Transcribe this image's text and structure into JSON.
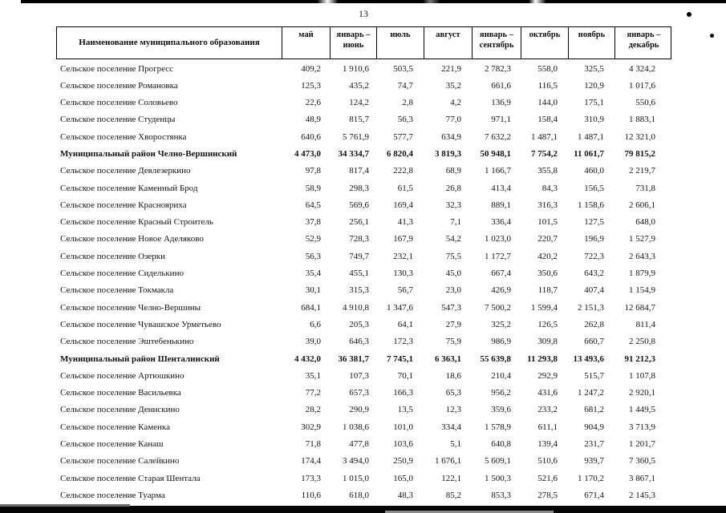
{
  "page": {
    "number": "13"
  },
  "table": {
    "header": {
      "name_column": "Наименование муниципального образования",
      "columns": [
        "май",
        "январь – июнь",
        "июль",
        "август",
        "январь – сентябрь",
        "октябрь",
        "ноябрь",
        "январь – декабрь"
      ]
    },
    "rows": [
      {
        "name": "Сельское поселение Прогресс",
        "type": "settlement",
        "values": [
          "409,2",
          "1 910,6",
          "503,5",
          "221,9",
          "2 782,3",
          "558,0",
          "325,5",
          "4 324,2"
        ]
      },
      {
        "name": "Сельское поселение Романовка",
        "type": "settlement",
        "values": [
          "125,3",
          "435,2",
          "74,7",
          "35,2",
          "661,6",
          "116,5",
          "120,9",
          "1 017,6"
        ]
      },
      {
        "name": "Сельское поселение Соловьево",
        "type": "settlement",
        "values": [
          "22,6",
          "124,2",
          "2,8",
          "4,2",
          "136,9",
          "144,0",
          "175,1",
          "550,6"
        ]
      },
      {
        "name": "Сельское поселение Студенцы",
        "type": "settlement",
        "values": [
          "48,9",
          "815,7",
          "56,3",
          "77,0",
          "971,1",
          "158,4",
          "310,9",
          "1 883,1"
        ]
      },
      {
        "name": "Сельское поселение Хворостянка",
        "type": "settlement",
        "values": [
          "640,6",
          "5 761,9",
          "577,7",
          "634,9",
          "7 632,2",
          "1 487,1",
          "1 487,1",
          "12 321,0"
        ]
      },
      {
        "name": "Муниципальный район Челно-Вершинский",
        "type": "district",
        "values": [
          "4 473,0",
          "34 334,7",
          "6 820,4",
          "3 819,3",
          "50 948,1",
          "7 754,2",
          "11 061,7",
          "79 815,2"
        ]
      },
      {
        "name": "Сельское поселение Девлезеркино",
        "type": "settlement",
        "values": [
          "97,8",
          "817,4",
          "222,8",
          "68,9",
          "1 166,7",
          "355,8",
          "460,0",
          "2 219,7"
        ]
      },
      {
        "name": "Сельское поселение Каменный Брод",
        "type": "settlement",
        "values": [
          "58,9",
          "298,3",
          "61,5",
          "26,8",
          "413,4",
          "84,3",
          "156,5",
          "731,8"
        ]
      },
      {
        "name": "Сельское поселение Краснояриха",
        "type": "settlement",
        "values": [
          "64,5",
          "569,6",
          "169,4",
          "32,3",
          "889,1",
          "316,3",
          "1 158,6",
          "2 606,1"
        ]
      },
      {
        "name": "Сельское поселение Красный Строитель",
        "type": "settlement",
        "values": [
          "37,8",
          "256,1",
          "41,3",
          "7,1",
          "336,4",
          "101,5",
          "127,5",
          "648,0"
        ]
      },
      {
        "name": "Сельское поселение Новое Аделяково",
        "type": "settlement",
        "values": [
          "52,9",
          "728,3",
          "167,9",
          "54,2",
          "1 023,0",
          "220,7",
          "196,9",
          "1 527,9"
        ]
      },
      {
        "name": "Сельское поселение Озерки",
        "type": "settlement",
        "values": [
          "56,3",
          "749,7",
          "232,1",
          "75,5",
          "1 172,7",
          "420,2",
          "722,3",
          "2 643,3"
        ]
      },
      {
        "name": "Сельское поселение Сиделькино",
        "type": "settlement",
        "values": [
          "35,4",
          "455,1",
          "130,3",
          "45,0",
          "667,4",
          "350,6",
          "643,2",
          "1 879,9"
        ]
      },
      {
        "name": "Сельское поселение Токмакла",
        "type": "settlement",
        "values": [
          "30,1",
          "315,3",
          "56,7",
          "23,0",
          "426,9",
          "118,7",
          "407,4",
          "1 154,9"
        ]
      },
      {
        "name": "Сельское поселение Челно-Вершины",
        "type": "settlement",
        "values": [
          "684,1",
          "4 910,8",
          "1 347,6",
          "547,3",
          "7 500,2",
          "1 599,4",
          "2 151,3",
          "12 684,7"
        ]
      },
      {
        "name": "Сельское поселение Чувашское Урметьево",
        "type": "settlement",
        "values": [
          "6,6",
          "205,3",
          "64,1",
          "27,9",
          "325,2",
          "126,5",
          "262,8",
          "811,4"
        ]
      },
      {
        "name": "Сельское поселение Эштебенькино",
        "type": "settlement",
        "values": [
          "39,0",
          "646,3",
          "172,3",
          "75,9",
          "986,9",
          "309,8",
          "660,7",
          "2 250,8"
        ]
      },
      {
        "name": "Муниципальный район Шенталинский",
        "type": "district",
        "values": [
          "4 432,0",
          "36 381,7",
          "7 745,1",
          "6 363,1",
          "55 639,8",
          "11 293,8",
          "13 493,6",
          "91 212,3"
        ]
      },
      {
        "name": "Сельское поселение Артюшкино",
        "type": "settlement",
        "values": [
          "35,1",
          "107,3",
          "70,1",
          "18,6",
          "210,4",
          "292,9",
          "515,7",
          "1 107,8"
        ]
      },
      {
        "name": "Сельское поселение Васильевка",
        "type": "settlement",
        "values": [
          "77,2",
          "657,3",
          "166,3",
          "65,3",
          "956,2",
          "431,6",
          "1 247,2",
          "2 920,1"
        ]
      },
      {
        "name": "Сельское поселение Денискино",
        "type": "settlement",
        "values": [
          "28,2",
          "290,9",
          "13,5",
          "12,3",
          "359,6",
          "233,2",
          "681,2",
          "1 449,5"
        ]
      },
      {
        "name": "Сельское поселение Каменка",
        "type": "settlement",
        "values": [
          "302,9",
          "1 038,6",
          "101,0",
          "334,4",
          "1 578,9",
          "611,1",
          "904,9",
          "3 713,9"
        ]
      },
      {
        "name": "Сельское поселение Канаш",
        "type": "settlement",
        "values": [
          "71,8",
          "477,8",
          "103,6",
          "5,1",
          "640,8",
          "139,4",
          "231,7",
          "1 201,7"
        ]
      },
      {
        "name": "Сельское поселение Салейкино",
        "type": "settlement",
        "values": [
          "174,4",
          "3 494,0",
          "250,9",
          "1 676,1",
          "5 609,1",
          "510,6",
          "939,7",
          "7 360,5"
        ]
      },
      {
        "name": "Сельское поселение Старая Шентала",
        "type": "settlement",
        "values": [
          "173,3",
          "1 015,0",
          "165,0",
          "122,1",
          "1 500,3",
          "521,6",
          "1 170,2",
          "3 867,1"
        ]
      },
      {
        "name": "Сельское поселение Туарма",
        "type": "settlement",
        "values": [
          "110,6",
          "618,0",
          "48,3",
          "85,2",
          "853,3",
          "278,5",
          "671,4",
          "2 145,3"
        ]
      }
    ]
  },
  "colors": {
    "text": "#141414",
    "border": "#000000",
    "scan_bar": "#050505"
  }
}
